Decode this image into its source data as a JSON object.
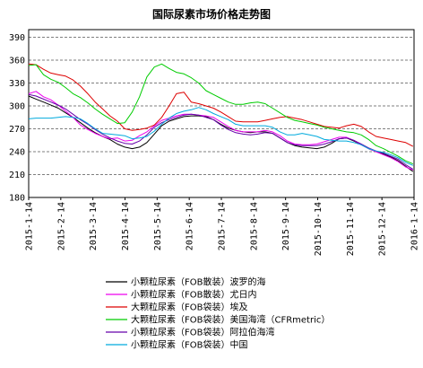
{
  "chart_data": {
    "type": "line",
    "title": "国际尿素市场价格走势图",
    "xlabel": "",
    "ylabel": "",
    "ylim": [
      180,
      400
    ],
    "yticks": [
      180,
      210,
      240,
      270,
      300,
      330,
      360,
      390
    ],
    "x_tick_labels": [
      "2015-1-14",
      "2015-2-14",
      "2015-3-14",
      "2015-4-14",
      "2015-5-14",
      "2015-6-14",
      "2015-7-14",
      "2015-8-14",
      "2015-9-14",
      "2015-10-14",
      "2015-11-14",
      "2015-12-14",
      "2016-1-14"
    ],
    "x": [
      "2015-01-14",
      "2015-01-21",
      "2015-01-28",
      "2015-02-04",
      "2015-02-11",
      "2015-02-18",
      "2015-02-25",
      "2015-03-04",
      "2015-03-11",
      "2015-03-18",
      "2015-03-25",
      "2015-04-01",
      "2015-04-08",
      "2015-04-15",
      "2015-04-22",
      "2015-04-29",
      "2015-05-06",
      "2015-05-13",
      "2015-05-20",
      "2015-05-27",
      "2015-06-03",
      "2015-06-10",
      "2015-06-17",
      "2015-06-24",
      "2015-07-01",
      "2015-07-08",
      "2015-07-15",
      "2015-07-22",
      "2015-07-29",
      "2015-08-05",
      "2015-08-12",
      "2015-08-19",
      "2015-08-26",
      "2015-09-02",
      "2015-09-09",
      "2015-09-16",
      "2015-09-23",
      "2015-09-30",
      "2015-10-07",
      "2015-10-14",
      "2015-10-21",
      "2015-10-28",
      "2015-11-04",
      "2015-11-11",
      "2015-11-18",
      "2015-11-25",
      "2015-12-02",
      "2015-12-09",
      "2015-12-16",
      "2015-12-23",
      "2015-12-30",
      "2016-01-06",
      "2016-01-13"
    ],
    "grid": true,
    "grid_style": "dashed horizontal",
    "legend_position": "bottom",
    "series": [
      {
        "name": "小颗粒尿素（FOB散装）波罗的海",
        "color": "#000000",
        "values": [
          313,
          309,
          305,
          301,
          297,
          291,
          285,
          278,
          271,
          265,
          260,
          256,
          250,
          246,
          244,
          246,
          252,
          263,
          274,
          280,
          283,
          286,
          287,
          287,
          286,
          282,
          276,
          271,
          268,
          266,
          265,
          266,
          266,
          264,
          258,
          252,
          248,
          246,
          245,
          244,
          246,
          251,
          257,
          258,
          254,
          249,
          244,
          240,
          237,
          233,
          228,
          221,
          214
        ]
      },
      {
        "name": "小颗粒尿素（FOB散装）尤日内",
        "color": "#ee00ee",
        "values": [
          316,
          319,
          312,
          308,
          301,
          293,
          285,
          275,
          269,
          264,
          260,
          257,
          258,
          254,
          255,
          261,
          266,
          274,
          281,
          284,
          287,
          289,
          289,
          288,
          287,
          285,
          279,
          273,
          268,
          266,
          266,
          266,
          268,
          266,
          261,
          254,
          250,
          249,
          249,
          250,
          253,
          256,
          259,
          259,
          255,
          249,
          244,
          240,
          236,
          232,
          227,
          220,
          216
        ]
      },
      {
        "name": "大颗粒尿素（FOB袋装）埃及",
        "color": "#dd0000",
        "values": [
          355,
          354,
          348,
          343,
          341,
          339,
          334,
          326,
          316,
          305,
          296,
          287,
          280,
          270,
          268,
          269,
          271,
          275,
          285,
          300,
          316,
          318,
          305,
          303,
          300,
          297,
          292,
          286,
          280,
          279,
          279,
          279,
          281,
          283,
          285,
          286,
          284,
          282,
          279,
          276,
          273,
          272,
          271,
          274,
          276,
          273,
          266,
          260,
          258,
          256,
          254,
          252,
          247
        ]
      },
      {
        "name": "大颗粒尿素（FOB袋装）美国海湾（CFRmetric）",
        "color": "#00cc00",
        "values": [
          353,
          354,
          341,
          335,
          331,
          324,
          316,
          311,
          304,
          296,
          289,
          283,
          277,
          278,
          292,
          312,
          338,
          351,
          355,
          349,
          344,
          342,
          337,
          330,
          320,
          315,
          310,
          305,
          302,
          302,
          304,
          305,
          303,
          297,
          291,
          285,
          281,
          279,
          277,
          275,
          272,
          270,
          268,
          266,
          265,
          262,
          256,
          248,
          244,
          239,
          234,
          228,
          224
        ]
      },
      {
        "name": "小颗粒尿素（FOB袋装）阿拉伯海湾",
        "color": "#6600aa",
        "values": [
          315,
          313,
          309,
          305,
          301,
          296,
          289,
          282,
          276,
          269,
          263,
          258,
          254,
          251,
          250,
          254,
          262,
          272,
          278,
          282,
          285,
          288,
          289,
          288,
          285,
          282,
          275,
          269,
          265,
          263,
          262,
          263,
          265,
          264,
          258,
          252,
          249,
          248,
          248,
          248,
          250,
          253,
          257,
          258,
          255,
          250,
          245,
          241,
          238,
          234,
          230,
          223,
          217
        ]
      },
      {
        "name": "小颗粒尿素（FOB袋装）中国",
        "color": "#00aadd",
        "values": [
          283,
          284,
          284,
          284,
          285,
          286,
          285,
          283,
          277,
          270,
          264,
          263,
          262,
          261,
          257,
          258,
          260,
          267,
          276,
          284,
          290,
          293,
          295,
          298,
          295,
          290,
          286,
          282,
          276,
          274,
          274,
          274,
          274,
          272,
          266,
          262,
          262,
          264,
          262,
          260,
          256,
          255,
          254,
          254,
          252,
          249,
          244,
          241,
          239,
          236,
          232,
          226,
          222
        ]
      }
    ]
  }
}
